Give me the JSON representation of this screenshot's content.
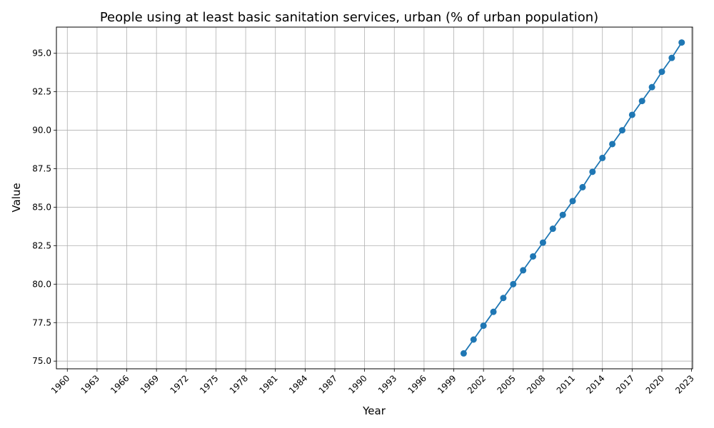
{
  "chart_data": {
    "type": "line",
    "title": "People using at least basic sanitation services, urban (% of urban population)",
    "xlabel": "Year",
    "ylabel": "Value",
    "xlim": [
      1958.9,
      2023.1
    ],
    "ylim": [
      74.5,
      96.7
    ],
    "x_ticks": [
      "1960",
      "1963",
      "1966",
      "1969",
      "1972",
      "1975",
      "1978",
      "1981",
      "1984",
      "1987",
      "1990",
      "1993",
      "1996",
      "1999",
      "2002",
      "2005",
      "2008",
      "2011",
      "2014",
      "2017",
      "2020",
      "2023"
    ],
    "y_ticks": [
      "75.0",
      "77.5",
      "80.0",
      "82.5",
      "85.0",
      "87.5",
      "90.0",
      "92.5",
      "95.0"
    ],
    "grid": true,
    "legend": "none",
    "series": [
      {
        "color": "#1f77b4",
        "x": [
          2000,
          2001,
          2002,
          2003,
          2004,
          2005,
          2006,
          2007,
          2008,
          2009,
          2010,
          2011,
          2012,
          2013,
          2014,
          2015,
          2016,
          2017,
          2018,
          2019,
          2020,
          2021,
          2022
        ],
        "values": [
          75.5,
          76.4,
          77.3,
          78.2,
          79.1,
          80.0,
          80.9,
          81.8,
          82.7,
          83.6,
          84.5,
          85.4,
          86.3,
          87.3,
          88.2,
          89.1,
          90.0,
          91.0,
          91.9,
          92.8,
          93.8,
          94.7,
          95.7
        ]
      }
    ]
  }
}
